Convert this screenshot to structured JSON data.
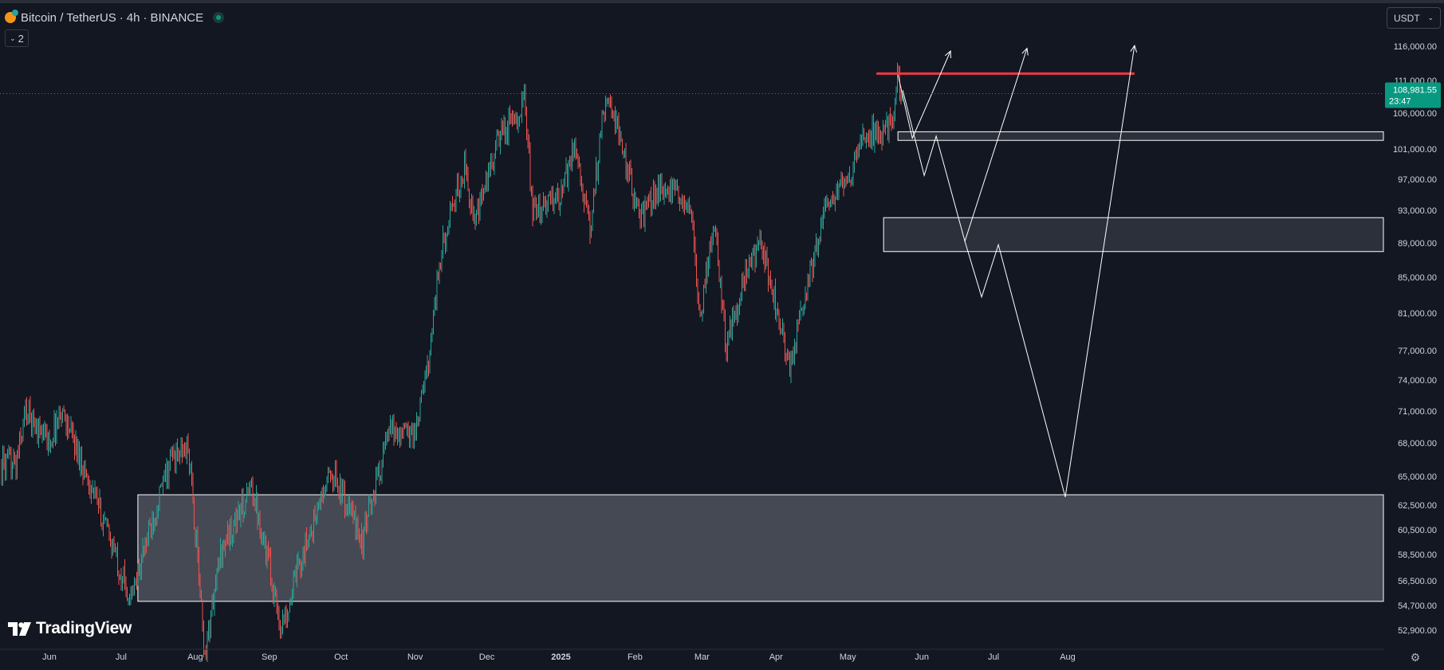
{
  "header": {
    "symbol": "Bitcoin / TetherUS",
    "sep1": "·",
    "interval": "4h",
    "sep2": "·",
    "exchange": "BINANCE"
  },
  "indicator_toggle": {
    "count": "2"
  },
  "currency_selector": {
    "value": "USDT"
  },
  "branding": {
    "logo_text": "TradingView"
  },
  "colors": {
    "background": "#131722",
    "up": "#26a69a",
    "down": "#ef5350",
    "resistance": "#f23645",
    "price_badge": "#089981",
    "zone_stroke": "#ffffff",
    "axis_text": "#d1d4dc"
  },
  "chart_data": {
    "type": "candlestick",
    "price_axis_ticks": [
      116000,
      111000,
      106000,
      101000,
      97000,
      93000,
      89000,
      85000,
      81000,
      77000,
      74000,
      71000,
      68000,
      65000,
      62500,
      60500,
      58500,
      56500,
      54700,
      52900
    ],
    "price_axis_labels": [
      "116,000.00",
      "111,000.00",
      "106,000.00",
      "101,000.00",
      "97,000.00",
      "93,000.00",
      "89,000.00",
      "85,000.00",
      "81,000.00",
      "77,000.00",
      "74,000.00",
      "71,000.00",
      "68,000.00",
      "65,000.00",
      "62,500.00",
      "60,500.00",
      "58,500.00",
      "56,500.00",
      "54,700.00",
      "52,900.00"
    ],
    "time_axis_labels": [
      {
        "date": "2024-06-01",
        "label": "Jun"
      },
      {
        "date": "2024-07-01",
        "label": "Jul"
      },
      {
        "date": "2024-08-01",
        "label": "Aug"
      },
      {
        "date": "2024-09-01",
        "label": "Sep"
      },
      {
        "date": "2024-10-01",
        "label": "Oct"
      },
      {
        "date": "2024-11-01",
        "label": "Nov"
      },
      {
        "date": "2024-12-01",
        "label": "Dec"
      },
      {
        "date": "2025-01-01",
        "label": "2025"
      },
      {
        "date": "2025-02-01",
        "label": "Feb"
      },
      {
        "date": "2025-03-01",
        "label": "Mar"
      },
      {
        "date": "2025-04-01",
        "label": "Apr"
      },
      {
        "date": "2025-05-01",
        "label": "May"
      },
      {
        "date": "2025-06-01",
        "label": "Jun"
      },
      {
        "date": "2025-07-01",
        "label": "Jul"
      },
      {
        "date": "2025-08-01",
        "label": "Aug"
      }
    ],
    "price_path": [
      [
        "2024-05-18",
        66000
      ],
      [
        "2024-05-22",
        71000
      ],
      [
        "2024-06-01",
        68000
      ],
      [
        "2024-06-06",
        71200
      ],
      [
        "2024-06-15",
        66000
      ],
      [
        "2024-06-24",
        61000
      ],
      [
        "2024-07-05",
        55000
      ],
      [
        "2024-07-15",
        62000
      ],
      [
        "2024-07-22",
        66500
      ],
      [
        "2024-07-29",
        67500
      ],
      [
        "2024-08-05",
        51000
      ],
      [
        "2024-08-12",
        59000
      ],
      [
        "2024-08-25",
        64000
      ],
      [
        "2024-09-06",
        53000
      ],
      [
        "2024-09-15",
        58500
      ],
      [
        "2024-09-27",
        65500
      ],
      [
        "2024-10-10",
        59500
      ],
      [
        "2024-10-21",
        69000
      ],
      [
        "2024-11-01",
        69000
      ],
      [
        "2024-11-06",
        75000
      ],
      [
        "2024-11-12",
        88000
      ],
      [
        "2024-11-22",
        99000
      ],
      [
        "2024-11-26",
        91000
      ],
      [
        "2024-12-05",
        101500
      ],
      [
        "2024-12-17",
        108000
      ],
      [
        "2024-12-20",
        92500
      ],
      [
        "2024-12-27",
        94000
      ],
      [
        "2025-01-01",
        94500
      ],
      [
        "2025-01-07",
        102000
      ],
      [
        "2025-01-13",
        90000
      ],
      [
        "2025-01-20",
        109500
      ],
      [
        "2025-01-26",
        102000
      ],
      [
        "2025-02-03",
        92000
      ],
      [
        "2025-02-12",
        96000
      ],
      [
        "2025-02-24",
        94000
      ],
      [
        "2025-02-28",
        80000
      ],
      [
        "2025-03-06",
        92000
      ],
      [
        "2025-03-11",
        77500
      ],
      [
        "2025-03-20",
        86000
      ],
      [
        "2025-03-26",
        88500
      ],
      [
        "2025-04-01",
        82000
      ],
      [
        "2025-04-07",
        75000
      ],
      [
        "2025-04-14",
        84000
      ],
      [
        "2025-04-22",
        93500
      ],
      [
        "2025-05-01",
        96500
      ],
      [
        "2025-05-08",
        103500
      ],
      [
        "2025-05-15",
        103000
      ],
      [
        "2025-05-20",
        106000
      ],
      [
        "2025-05-22",
        111900
      ],
      [
        "2025-05-24",
        108981.55
      ]
    ],
    "current_price": {
      "label": "108,981.55",
      "countdown": "23:47",
      "value": 108981.55
    },
    "resistance_line": {
      "price": 112000,
      "from": "2025-05-13",
      "to": "2025-08-29"
    },
    "zones": [
      {
        "name": "demand-zone-upper",
        "price_top": 103400,
        "price_bottom": 102200,
        "from": "2025-05-22",
        "extend_right": true
      },
      {
        "name": "demand-zone-middle",
        "price_top": 92100,
        "price_bottom": 88000,
        "from": "2025-05-16",
        "extend_right": true
      },
      {
        "name": "demand-zone-lower",
        "price_top": 63400,
        "price_bottom": 55000,
        "from": "2024-07-08",
        "extend_right": true
      }
    ],
    "projections": [
      {
        "name": "projection-path-1",
        "points": [
          [
            "2025-05-22",
            111800
          ],
          [
            "2025-05-28",
            102500
          ],
          [
            "2025-06-13",
            115300
          ]
        ],
        "arrow": true
      },
      {
        "name": "projection-path-2",
        "points": [
          [
            "2025-05-24",
            109500
          ],
          [
            "2025-06-02",
            97500
          ],
          [
            "2025-06-07",
            102800
          ],
          [
            "2025-06-19",
            89200
          ],
          [
            "2025-07-15",
            115700
          ]
        ],
        "arrow": true
      },
      {
        "name": "projection-path-3",
        "points": [
          [
            "2025-06-19",
            89200
          ],
          [
            "2025-06-26",
            82800
          ],
          [
            "2025-07-03",
            88800
          ],
          [
            "2025-07-31",
            63200
          ],
          [
            "2025-08-29",
            116100
          ]
        ],
        "arrow": true
      }
    ]
  }
}
